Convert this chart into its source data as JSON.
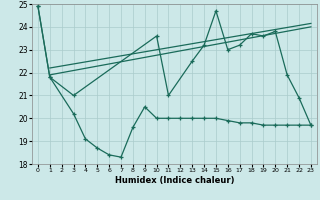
{
  "title": "",
  "xlabel": "Humidex (Indice chaleur)",
  "xlim": [
    -0.5,
    23.5
  ],
  "ylim": [
    18,
    25
  ],
  "xticks": [
    0,
    1,
    2,
    3,
    4,
    5,
    6,
    7,
    8,
    9,
    10,
    11,
    12,
    13,
    14,
    15,
    16,
    17,
    18,
    19,
    20,
    21,
    22,
    23
  ],
  "yticks": [
    18,
    19,
    20,
    21,
    22,
    23,
    24,
    25
  ],
  "background_color": "#cce8e8",
  "grid_color": "#aacccc",
  "line_color": "#1a6b5a",
  "line1_x": [
    0,
    1,
    3,
    10,
    11,
    13,
    14,
    15,
    16,
    17,
    18,
    19,
    20,
    21,
    22,
    23
  ],
  "line1_y": [
    24.9,
    21.8,
    21.0,
    23.6,
    21.0,
    22.5,
    23.2,
    24.7,
    23.0,
    23.2,
    23.7,
    23.6,
    23.8,
    21.9,
    20.9,
    19.7
  ],
  "line2_x": [
    0,
    1,
    3,
    4,
    5,
    6,
    7,
    8,
    9,
    10,
    11,
    12,
    13,
    14,
    15,
    16,
    17,
    18,
    19,
    20,
    21,
    22,
    23
  ],
  "line2_y": [
    24.9,
    21.8,
    20.2,
    19.1,
    18.7,
    18.4,
    18.3,
    19.6,
    20.5,
    20.0,
    20.0,
    20.0,
    20.0,
    20.0,
    20.0,
    19.9,
    19.8,
    19.8,
    19.7,
    19.7,
    19.7,
    19.7,
    19.7
  ],
  "line3_x": [
    1,
    23
  ],
  "line3_y": [
    21.9,
    24.0
  ],
  "line4_x": [
    1,
    23
  ],
  "line4_y": [
    22.2,
    24.15
  ]
}
